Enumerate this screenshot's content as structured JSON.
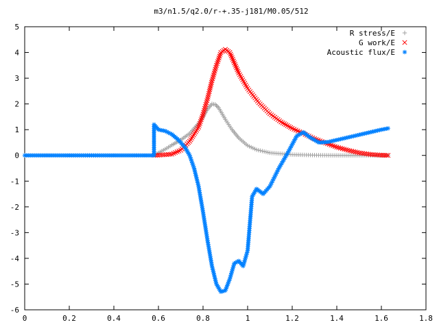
{
  "chart_data": {
    "type": "scatter",
    "title": "m3/n1.5/q2.0/r-+.35-j181/M0.05/512",
    "xlabel": "",
    "ylabel": "",
    "xlim": [
      0,
      1.8
    ],
    "ylim": [
      -6,
      5
    ],
    "x_ticks": [
      "0",
      "0.2",
      "0.4",
      "0.6",
      "0.8",
      "1",
      "1.2",
      "1.4",
      "1.6",
      "1.8"
    ],
    "y_ticks": [
      "-6",
      "-5",
      "-4",
      "-3",
      "-2",
      "-1",
      "0",
      "1",
      "2",
      "3",
      "4",
      "5"
    ],
    "grid": false,
    "legend_position": "top-right",
    "series": [
      {
        "name": "R stress/E",
        "marker": "+",
        "color": "#a0a0a0",
        "points": [
          [
            0.58,
            0.0
          ],
          [
            0.6,
            0.1
          ],
          [
            0.63,
            0.24
          ],
          [
            0.66,
            0.4
          ],
          [
            0.7,
            0.6
          ],
          [
            0.74,
            0.85
          ],
          [
            0.78,
            1.25
          ],
          [
            0.8,
            1.5
          ],
          [
            0.82,
            1.8
          ],
          [
            0.84,
            2.0
          ],
          [
            0.855,
            1.98
          ],
          [
            0.87,
            1.85
          ],
          [
            0.9,
            1.4
          ],
          [
            0.93,
            1.0
          ],
          [
            0.96,
            0.68
          ],
          [
            1.0,
            0.38
          ],
          [
            1.04,
            0.22
          ],
          [
            1.1,
            0.1
          ],
          [
            1.2,
            0.03
          ],
          [
            1.3,
            0.01
          ],
          [
            1.4,
            0.0
          ],
          [
            1.5,
            0.0
          ],
          [
            1.63,
            0.0
          ]
        ]
      },
      {
        "name": "G work/E",
        "marker": "x",
        "color": "#ff0000",
        "points": [
          [
            0.58,
            0.0
          ],
          [
            0.62,
            0.02
          ],
          [
            0.66,
            0.05
          ],
          [
            0.7,
            0.2
          ],
          [
            0.74,
            0.55
          ],
          [
            0.78,
            1.1
          ],
          [
            0.8,
            1.6
          ],
          [
            0.82,
            2.2
          ],
          [
            0.84,
            2.9
          ],
          [
            0.86,
            3.5
          ],
          [
            0.88,
            4.0
          ],
          [
            0.9,
            4.12
          ],
          [
            0.92,
            4.0
          ],
          [
            0.94,
            3.6
          ],
          [
            0.96,
            3.2
          ],
          [
            1.0,
            2.6
          ],
          [
            1.05,
            2.05
          ],
          [
            1.1,
            1.62
          ],
          [
            1.15,
            1.3
          ],
          [
            1.2,
            1.05
          ],
          [
            1.25,
            0.85
          ],
          [
            1.3,
            0.65
          ],
          [
            1.35,
            0.48
          ],
          [
            1.4,
            0.32
          ],
          [
            1.45,
            0.2
          ],
          [
            1.5,
            0.1
          ],
          [
            1.55,
            0.04
          ],
          [
            1.6,
            0.01
          ],
          [
            1.63,
            0.0
          ]
        ]
      },
      {
        "name": "Acoustic flux/E",
        "marker": "*",
        "color": "#0080ff",
        "points": [
          [
            0.0,
            0.0
          ],
          [
            0.1,
            0.0
          ],
          [
            0.2,
            0.0
          ],
          [
            0.3,
            0.0
          ],
          [
            0.4,
            0.0
          ],
          [
            0.5,
            0.0
          ],
          [
            0.58,
            0.0
          ],
          [
            0.58,
            1.2
          ],
          [
            0.6,
            1.0
          ],
          [
            0.63,
            0.95
          ],
          [
            0.66,
            0.82
          ],
          [
            0.69,
            0.6
          ],
          [
            0.72,
            0.3
          ],
          [
            0.74,
            0.0
          ],
          [
            0.76,
            -0.5
          ],
          [
            0.78,
            -1.2
          ],
          [
            0.8,
            -2.2
          ],
          [
            0.82,
            -3.3
          ],
          [
            0.84,
            -4.3
          ],
          [
            0.86,
            -5.0
          ],
          [
            0.88,
            -5.3
          ],
          [
            0.9,
            -5.25
          ],
          [
            0.92,
            -4.8
          ],
          [
            0.94,
            -4.2
          ],
          [
            0.96,
            -4.1
          ],
          [
            0.98,
            -4.3
          ],
          [
            1.0,
            -3.7
          ],
          [
            1.02,
            -1.6
          ],
          [
            1.04,
            -1.3
          ],
          [
            1.07,
            -1.5
          ],
          [
            1.1,
            -1.2
          ],
          [
            1.14,
            -0.5
          ],
          [
            1.18,
            0.1
          ],
          [
            1.22,
            0.75
          ],
          [
            1.25,
            0.9
          ],
          [
            1.28,
            0.7
          ],
          [
            1.32,
            0.5
          ],
          [
            1.36,
            0.52
          ],
          [
            1.4,
            0.6
          ],
          [
            1.45,
            0.7
          ],
          [
            1.5,
            0.8
          ],
          [
            1.55,
            0.9
          ],
          [
            1.6,
            1.0
          ],
          [
            1.63,
            1.05
          ]
        ]
      }
    ]
  }
}
